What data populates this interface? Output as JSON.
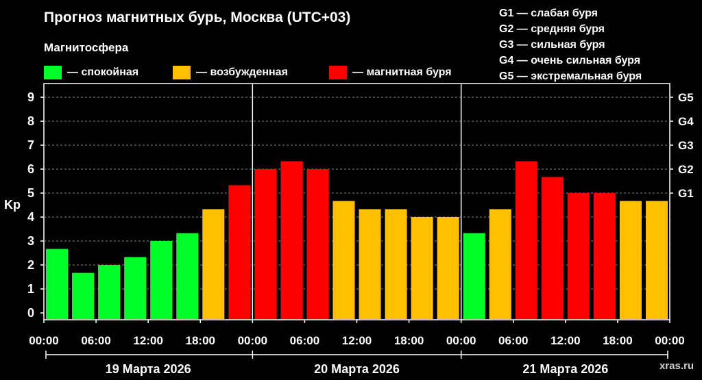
{
  "title": "Прогноз магнитных бурь, Москва (UTC+03)",
  "subtitle": "Магнитосфера",
  "legend": [
    {
      "label": "— спокойная",
      "color": "#00ff2a"
    },
    {
      "label": "— возбужденная",
      "color": "#ffc000"
    },
    {
      "label": "— магнитная буря",
      "color": "#ff0000"
    }
  ],
  "g_scale": [
    "G1 — слабая буря",
    "G2 — средняя буря",
    "G3 — сильная буря",
    "G4 — очень сильная буря",
    "G5 — экстремальная буря"
  ],
  "watermark": "xras.ru",
  "chart_data": {
    "type": "bar",
    "ylabel": "Kp",
    "ylim": [
      0,
      9
    ],
    "yticks": [
      "0",
      "1",
      "2",
      "3",
      "4",
      "5",
      "6",
      "7",
      "8",
      "9"
    ],
    "right_ticks": [
      {
        "label": "G1",
        "value": 5
      },
      {
        "label": "G2",
        "value": 6
      },
      {
        "label": "G3",
        "value": 7
      },
      {
        "label": "G4",
        "value": 8
      },
      {
        "label": "G5",
        "value": 9
      }
    ],
    "xticks": [
      "00:00",
      "06:00",
      "12:00",
      "18:00",
      "00:00",
      "06:00",
      "12:00",
      "18:00",
      "00:00",
      "06:00",
      "12:00",
      "18:00",
      "00:00"
    ],
    "days": [
      "19 Марта 2026",
      "20 Марта 2026",
      "21 Марта 2026"
    ],
    "grid": "dashed horizontal",
    "values": [
      2.67,
      1.67,
      2.0,
      2.33,
      3.0,
      3.33,
      4.33,
      5.33,
      6.0,
      6.33,
      6.0,
      4.67,
      4.33,
      4.33,
      4.0,
      4.0,
      3.33,
      4.33,
      6.33,
      5.67,
      5.0,
      5.0,
      4.67,
      4.67
    ],
    "levels": [
      "quiet",
      "quiet",
      "quiet",
      "quiet",
      "quiet",
      "quiet",
      "active",
      "storm",
      "storm",
      "storm",
      "storm",
      "active",
      "active",
      "active",
      "active",
      "active",
      "quiet",
      "active",
      "storm",
      "storm",
      "storm",
      "storm",
      "active",
      "active"
    ],
    "level_colors": {
      "quiet": "#00ff2a",
      "active": "#ffc000",
      "storm": "#ff0000"
    }
  }
}
